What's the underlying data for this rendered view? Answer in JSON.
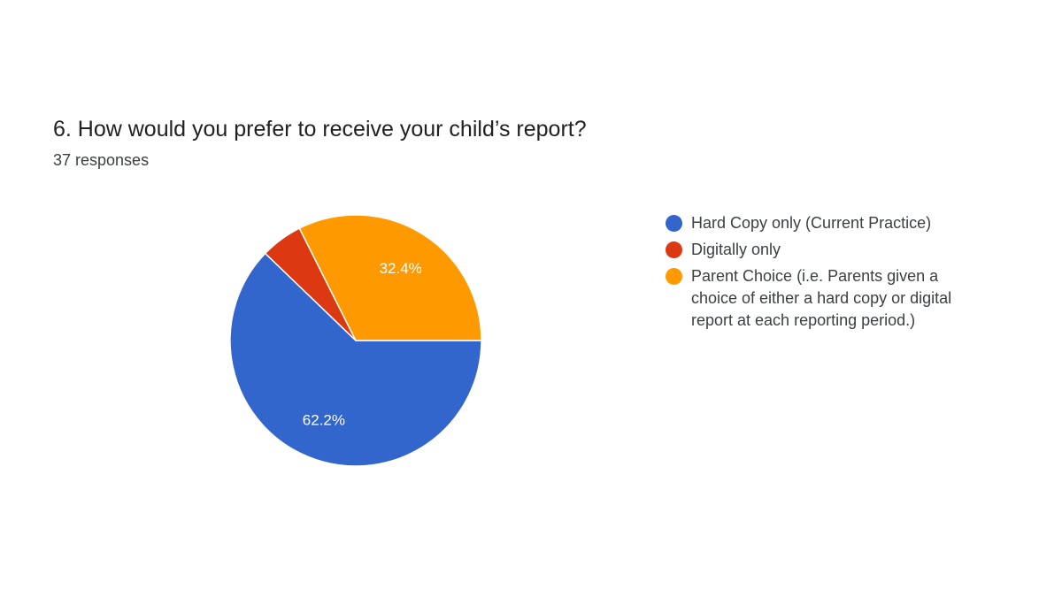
{
  "question": {
    "title": "6. How would you prefer to receive your child’s report?",
    "responses": "37 responses"
  },
  "chart_data": {
    "type": "pie",
    "title": "6. How would you prefer to receive your child’s report?",
    "subtitle": "37 responses",
    "legend_position": "right",
    "slices": [
      {
        "label": "Hard Copy only (Current Practice)",
        "value": 62.2,
        "display": "62.2%",
        "color": "#3366cc"
      },
      {
        "label": "Digitally only",
        "value": 5.4,
        "display": "",
        "color": "#dc3912"
      },
      {
        "label": "Parent Choice (i.e. Parents given a choice of either a hard copy or digital report at each reporting period.)",
        "value": 32.4,
        "display": "32.4%",
        "color": "#ff9900"
      }
    ]
  }
}
